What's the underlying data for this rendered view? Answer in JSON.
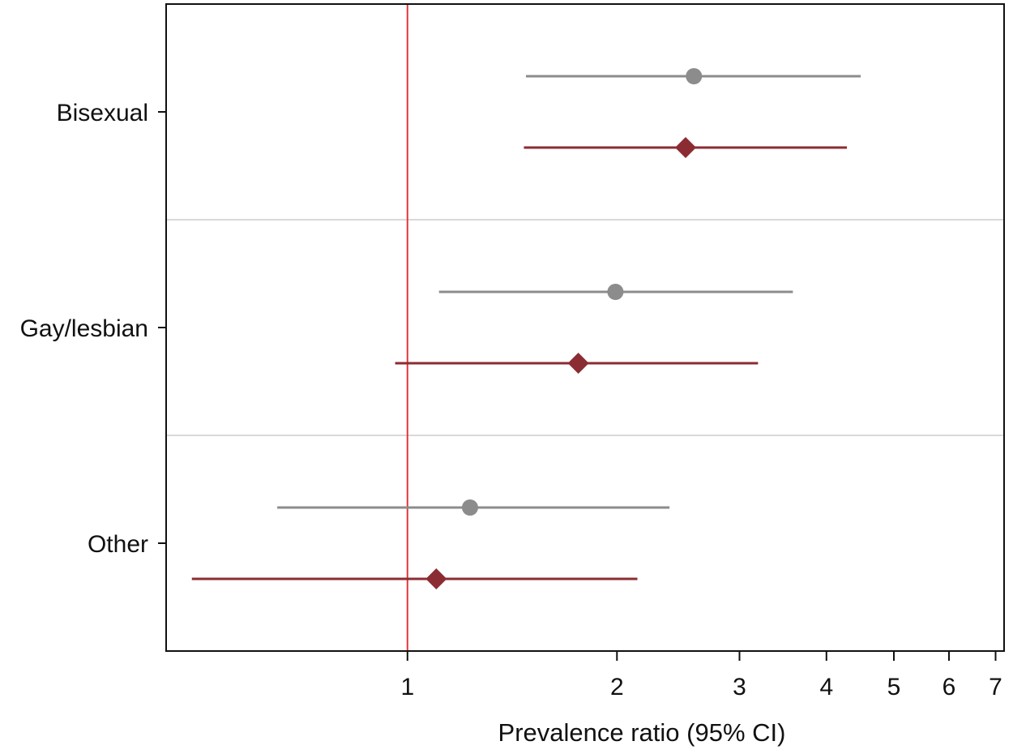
{
  "chart_data": {
    "type": "scatter",
    "subtype": "forest-plot",
    "title": "",
    "xlabel": "Prevalence ratio (95% CI)",
    "ylabel": "",
    "x_scale": "log",
    "xlim": [
      0.45,
      7.2
    ],
    "x_ticks": [
      1,
      2,
      3,
      4,
      5,
      6,
      7
    ],
    "x_tick_labels": [
      "1",
      "2",
      "3",
      "4",
      "5",
      "6",
      "7"
    ],
    "reference_line": 1,
    "categories": [
      "Bisexual",
      "Gay/lesbian",
      "Other"
    ],
    "grid": false,
    "legend": "none",
    "series": [
      {
        "marker": "circle",
        "color": "#8c8c8c",
        "estimates": [
          2.58,
          1.99,
          1.23
        ],
        "lower": [
          1.48,
          1.11,
          0.65
        ],
        "upper": [
          4.48,
          3.58,
          2.38
        ]
      },
      {
        "marker": "diamond",
        "color": "#8b2c33",
        "estimates": [
          2.51,
          1.76,
          1.1
        ],
        "lower": [
          1.47,
          0.96,
          0.49
        ],
        "upper": [
          4.28,
          3.19,
          2.14
        ]
      }
    ],
    "colors": {
      "reference_line": "#e8343a",
      "separator": "#d9d9d9",
      "frame": "#111111"
    }
  }
}
